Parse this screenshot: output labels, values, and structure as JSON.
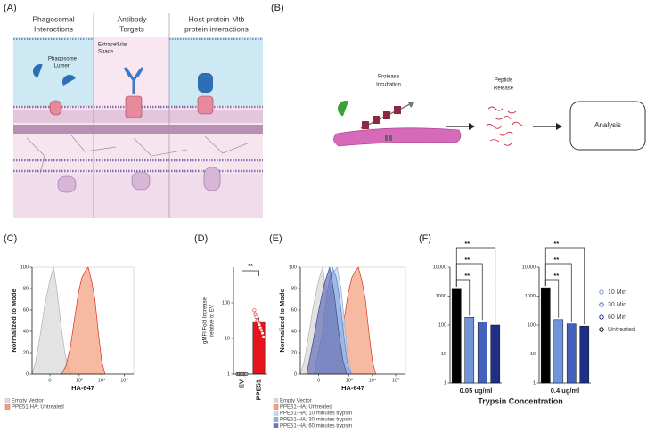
{
  "figure": {
    "A": {
      "label": "(A)",
      "columns": [
        [
          "Phagosomal",
          "Interactions"
        ],
        [
          "Antibody",
          "Targets"
        ],
        [
          "Host protein-Mtb",
          "protein interactions"
        ]
      ],
      "extracellular": [
        "Extracellular",
        "Space"
      ],
      "lumen": [
        "Phagosome",
        "Lumen"
      ]
    },
    "B": {
      "label": "(B)",
      "steps": [
        [
          "Protease",
          "Incubation"
        ],
        [
          "Peptide",
          "Release"
        ]
      ],
      "analysis": "Analysis"
    }
  },
  "chart_data": [
    {
      "type": "area",
      "panel_label": "(C)",
      "xlabel": "HA-647",
      "ylabel": "Normalized to Mode",
      "xscale": "asinh",
      "xlim": [
        -300,
        262144
      ],
      "xticks": [
        0,
        {
          "value": 1000,
          "label": "10³"
        },
        {
          "value": 10000,
          "label": "10⁴"
        },
        {
          "value": 100000,
          "label": "10⁵"
        }
      ],
      "ylim": [
        0,
        100
      ],
      "yticks": [
        0,
        20,
        40,
        60,
        80,
        100
      ],
      "series": [
        {
          "name": "Empty Vector",
          "color": "#d9d9d9",
          "edgecolor": "#b0b0b0",
          "x": [
            -300,
            -200,
            -120,
            -60,
            0,
            40,
            80,
            140,
            220,
            320,
            450
          ],
          "values": [
            0,
            12,
            35,
            62,
            88,
            100,
            78,
            46,
            20,
            6,
            0
          ]
        },
        {
          "name": "PPE51-HA; Untreated",
          "color": "#f3a384",
          "edgecolor": "#d7301f",
          "x": [
            150,
            250,
            400,
            600,
            900,
            1300,
            1800,
            2500,
            3500,
            5000,
            7000,
            10000,
            14000
          ],
          "values": [
            0,
            8,
            25,
            50,
            75,
            90,
            96,
            100,
            88,
            70,
            40,
            12,
            0
          ]
        }
      ]
    },
    {
      "type": "bar",
      "panel_label": "(D)",
      "ylabel": [
        "gMFI Fold Increase",
        "relative to EV"
      ],
      "yscale": "log",
      "categories": [
        "EV",
        "PPE51"
      ],
      "values": [
        1,
        29.6
      ],
      "errors": [
        0,
        10
      ],
      "colors": [
        "#ffffff",
        "#e8141b"
      ],
      "points": [
        [
          1,
          1,
          1,
          1,
          1,
          1,
          1
        ],
        [
          62,
          48,
          40,
          32,
          28,
          24,
          20,
          17,
          14,
          11
        ]
      ],
      "ylim": [
        1,
        1000
      ],
      "yticks": [
        1,
        10,
        100
      ],
      "significance": "**"
    },
    {
      "type": "area",
      "panel_label": "(E)",
      "xlabel": "HA-647",
      "ylabel": "Normalized to Mode",
      "xscale": "asinh",
      "xlim": [
        -300,
        262144
      ],
      "xticks": [
        0,
        {
          "value": 1000,
          "label": "10³"
        },
        {
          "value": 10000,
          "label": "10⁴"
        },
        {
          "value": 100000,
          "label": "10⁵"
        }
      ],
      "ylim": [
        0,
        100
      ],
      "yticks": [
        0,
        20,
        40,
        60,
        80,
        100
      ],
      "series": [
        {
          "name": "Empty Vector",
          "color": "#d9d9d9",
          "edgecolor": "#b0b0b0",
          "x": [
            -300,
            -200,
            -120,
            -60,
            0,
            40,
            80,
            140,
            220,
            320,
            450
          ],
          "values": [
            0,
            12,
            35,
            62,
            88,
            100,
            78,
            46,
            20,
            6,
            0
          ]
        },
        {
          "name": "PPE51-HA; Untreated",
          "color": "#f3a384",
          "edgecolor": "#d7301f",
          "x": [
            150,
            250,
            400,
            600,
            900,
            1300,
            1800,
            2500,
            3500,
            5000,
            7000,
            10000,
            14000
          ],
          "values": [
            0,
            8,
            25,
            50,
            75,
            90,
            96,
            100,
            88,
            70,
            40,
            12,
            0
          ]
        },
        {
          "name": "PPE51-HA; 10 minutes trypsin",
          "color": "#c5d8f2",
          "edgecolor": "#8fb0e0",
          "x": [
            0,
            60,
            120,
            200,
            300,
            450,
            650,
            900,
            1300
          ],
          "values": [
            0,
            30,
            70,
            95,
            100,
            80,
            45,
            15,
            0
          ]
        },
        {
          "name": "PPE51-HA; 30 minutes trypsin",
          "color": "#8eaee0",
          "edgecolor": "#5b7fc4",
          "x": [
            -50,
            30,
            100,
            180,
            280,
            420,
            600,
            850,
            1200
          ],
          "values": [
            0,
            35,
            80,
            100,
            90,
            65,
            35,
            10,
            0
          ]
        },
        {
          "name": "PPE51-HA; 60 minutes trypsin",
          "color": "#6f78b8",
          "edgecolor": "#3f4a94",
          "x": [
            -150,
            -60,
            0,
            60,
            130,
            220,
            350,
            550,
            800
          ],
          "values": [
            0,
            30,
            60,
            85,
            100,
            75,
            40,
            12,
            0
          ]
        }
      ]
    },
    {
      "type": "grouped_bar",
      "panel_label": "(F)",
      "xlabel": "Trypsin Concentration",
      "yscale": "log",
      "categories": [
        "0.05 ug/ml",
        "0.4 ug/ml"
      ],
      "ylim": [
        1,
        10000
      ],
      "yticks": [
        1,
        10,
        100,
        1000,
        10000
      ],
      "series": [
        {
          "name": "Untreated",
          "color": "#000000",
          "values": [
            1850,
            1950
          ]
        },
        {
          "name": "10 Min",
          "color": "#6f95dc",
          "values": [
            185,
            155
          ]
        },
        {
          "name": "30 Min",
          "color": "#4461bd",
          "values": [
            130,
            110
          ]
        },
        {
          "name": "60 Min",
          "color": "#1f2f86",
          "values": [
            100,
            92
          ]
        }
      ],
      "significance": [
        [
          "**",
          "**",
          "**"
        ],
        [
          "**",
          "**",
          "**"
        ]
      ]
    }
  ]
}
